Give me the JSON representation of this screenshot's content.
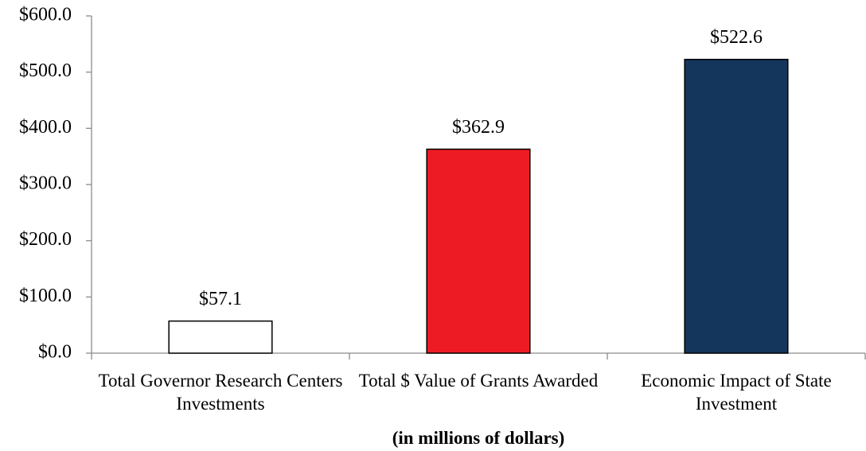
{
  "chart_data": {
    "type": "bar",
    "categories": [
      "Total Governor Research Centers Investments",
      "Total $ Value of Grants Awarded",
      "Economic Impact of State Investment"
    ],
    "values": [
      57.1,
      362.9,
      522.6
    ],
    "value_labels": [
      "$57.1",
      "$362.9",
      "$522.6"
    ],
    "colors": [
      "#ffffff",
      "#ed1c24",
      "#14365d"
    ],
    "x_label": "(in millions of dollars)",
    "ylim": [
      0,
      600
    ],
    "yticks": [
      {
        "value": 0,
        "label": "$0.0"
      },
      {
        "value": 100,
        "label": "$100.0"
      },
      {
        "value": 200,
        "label": "$200.0"
      },
      {
        "value": 300,
        "label": "$300.0"
      },
      {
        "value": 400,
        "label": "$400.0"
      },
      {
        "value": 500,
        "label": "$500.0"
      },
      {
        "value": 600,
        "label": "$600.0"
      }
    ]
  }
}
